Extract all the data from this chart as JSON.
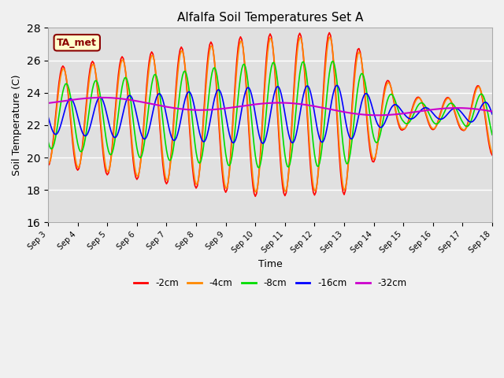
{
  "title": "Alfalfa Soil Temperatures Set A",
  "xlabel": "Time",
  "ylabel": "Soil Temperature (C)",
  "ylim": [
    16,
    28
  ],
  "annotation": "TA_met",
  "series_colors": {
    "-2cm": "#ff0000",
    "-4cm": "#ff8800",
    "-8cm": "#00dd00",
    "-16cm": "#0000ff",
    "-32cm": "#cc00cc"
  },
  "x_tick_labels": [
    "Sep 3",
    "Sep 4",
    "Sep 5",
    "Sep 6",
    "Sep 7",
    "Sep 8",
    "Sep 9",
    "Sep 10",
    "Sep 11",
    "Sep 12",
    "Sep 13",
    "Sep 14",
    "Sep 15",
    "Sep 16",
    "Sep 17",
    "Sep 18"
  ],
  "plot_bg_color": "#e0e0e0",
  "grid_color": "#ffffff",
  "legend_items": [
    "-2cm",
    "-4cm",
    "-8cm",
    "-16cm",
    "-32cm"
  ]
}
